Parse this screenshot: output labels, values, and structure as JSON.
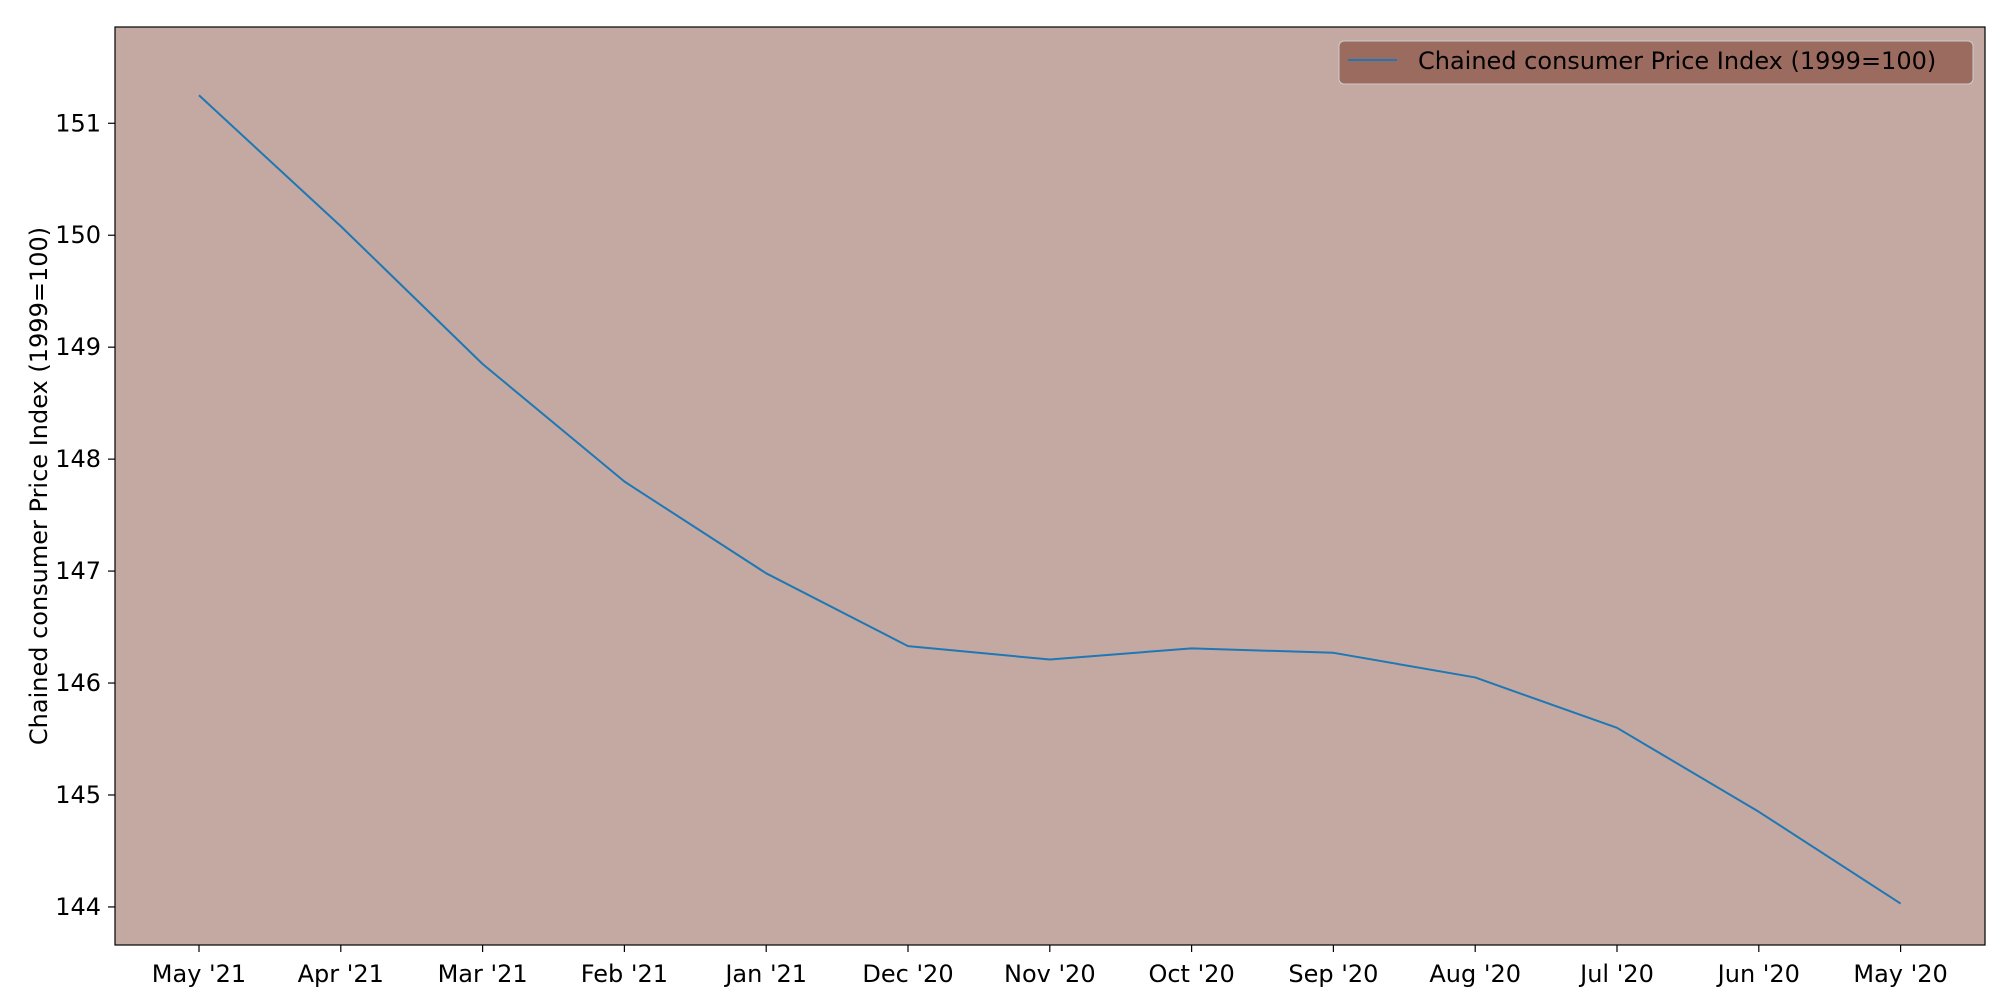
{
  "chart_data": {
    "type": "line",
    "title": "",
    "xlabel": "",
    "ylabel": "Chained consumer Price Index (1999=100)",
    "categories": [
      "May '21",
      "Apr '21",
      "Mar '21",
      "Feb '21",
      "Jan '21",
      "Dec '20",
      "Nov '20",
      "Oct '20",
      "Sep '20",
      "Aug '20",
      "Jul '20",
      "Jun '20",
      "May '20"
    ],
    "series": [
      {
        "name": "Chained consumer Price Index (1999=100)",
        "values": [
          151.25,
          150.08,
          148.85,
          147.8,
          146.98,
          146.33,
          146.21,
          146.31,
          146.27,
          146.05,
          145.6,
          144.85,
          144.03
        ],
        "color": "#1f77b4"
      }
    ],
    "ylim": [
      143.66,
      151.86
    ],
    "yticks": [
      144,
      145,
      146,
      147,
      148,
      149,
      150,
      151
    ],
    "grid": false,
    "legend_position": "top-right",
    "colors": {
      "plot_background": "#c4a9a2",
      "legend_background": "#9c6b60",
      "line": "#1f77b4"
    }
  }
}
